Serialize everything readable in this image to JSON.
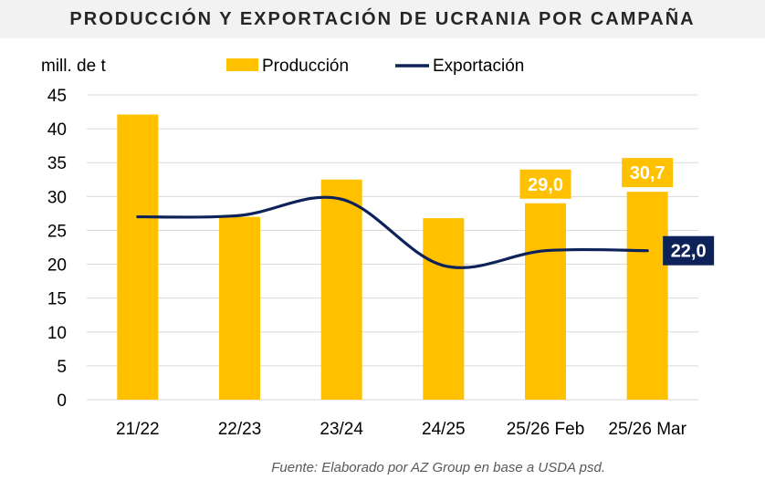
{
  "title": "PRODUCCIÓN Y EXPORTACIÓN DE UCRANIA POR CAMPAÑA",
  "source": "Fuente: Elaborado por AZ Group en base a USDA psd.",
  "chart_data": {
    "type": "bar",
    "ylabel": "mill. de t",
    "ylim": [
      0,
      45
    ],
    "yticks": [
      0,
      5,
      10,
      15,
      20,
      25,
      30,
      35,
      40,
      45
    ],
    "grid": true,
    "legend_placement": "top",
    "categories": [
      "21/22",
      "22/23",
      "23/24",
      "24/25",
      "25/26 Feb",
      "25/26 Mar"
    ],
    "series": [
      {
        "name": "Producción",
        "type": "bar",
        "color": "#ffc000",
        "values": [
          42.1,
          27.0,
          32.5,
          26.8,
          29.0,
          30.7
        ],
        "data_labels": [
          "",
          "",
          "",
          "",
          "29,0",
          "30,7"
        ]
      },
      {
        "name": "Exportación",
        "type": "line",
        "color": "#0d2259",
        "values": [
          27.0,
          27.2,
          29.6,
          19.8,
          22.0,
          22.0
        ],
        "data_labels": [
          "",
          "",
          "",
          "",
          "",
          "22,0"
        ]
      }
    ]
  }
}
